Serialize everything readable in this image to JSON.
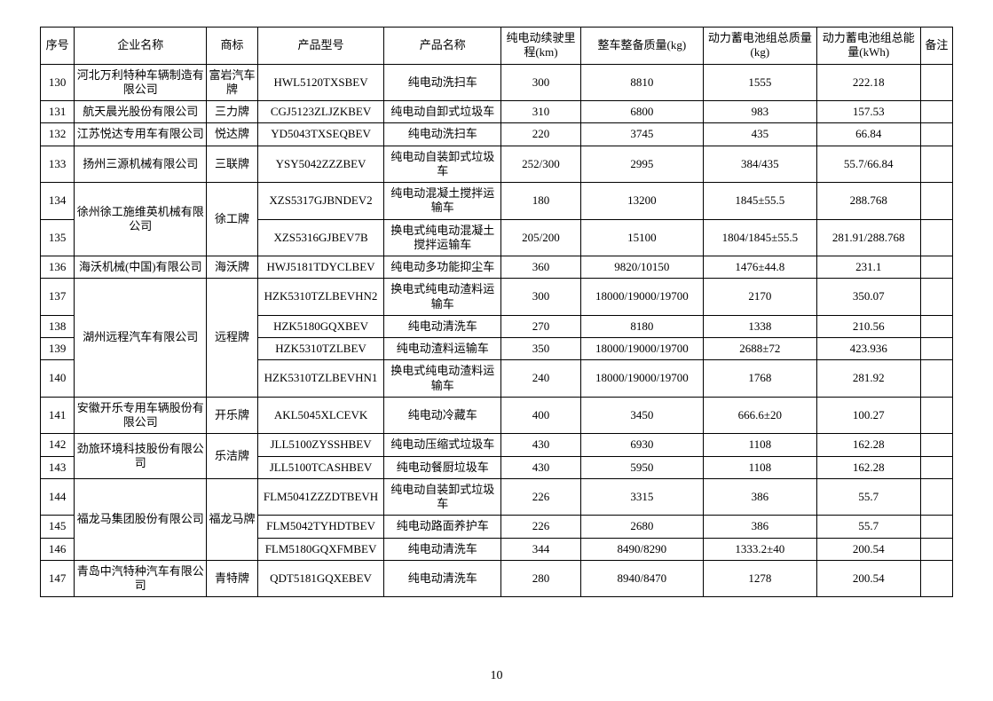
{
  "pageNumber": "10",
  "columns": [
    "序号",
    "企业名称",
    "商标",
    "产品型号",
    "产品名称",
    "纯电动续驶里程(km)",
    "整车整备质量(kg)",
    "动力蓄电池组总质量(kg)",
    "动力蓄电池组总能量(kWh)",
    "备注"
  ],
  "rows": [
    {
      "seq": "130",
      "company": "河北万利特种车辆制造有限公司",
      "brand": "富岩汽车牌",
      "model": "HWL5120TXSBEV",
      "pname": "纯电动洗扫车",
      "range": "300",
      "mass": "8810",
      "bmass": "1555",
      "energy": "222.18",
      "note": "",
      "rowspanCompany": 1,
      "rowspanBrand": 1
    },
    {
      "seq": "131",
      "company": "航天晨光股份有限公司",
      "brand": "三力牌",
      "model": "CGJ5123ZLJZKBEV",
      "pname": "纯电动自卸式垃圾车",
      "range": "310",
      "mass": "6800",
      "bmass": "983",
      "energy": "157.53",
      "note": "",
      "rowspanCompany": 1,
      "rowspanBrand": 1
    },
    {
      "seq": "132",
      "company": "江苏悦达专用车有限公司",
      "brand": "悦达牌",
      "model": "YD5043TXSEQBEV",
      "pname": "纯电动洗扫车",
      "range": "220",
      "mass": "3745",
      "bmass": "435",
      "energy": "66.84",
      "note": "",
      "rowspanCompany": 1,
      "rowspanBrand": 1
    },
    {
      "seq": "133",
      "company": "扬州三源机械有限公司",
      "brand": "三联牌",
      "model": "YSY5042ZZZBEV",
      "pname": "纯电动自装卸式垃圾车",
      "range": "252/300",
      "mass": "2995",
      "bmass": "384/435",
      "energy": "55.7/66.84",
      "note": "",
      "rowspanCompany": 1,
      "rowspanBrand": 1
    },
    {
      "seq": "134",
      "company": "徐州徐工施维英机械有限公司",
      "brand": "徐工牌",
      "model": "XZS5317GJBNDEV2",
      "pname": "纯电动混凝土搅拌运输车",
      "range": "180",
      "mass": "13200",
      "bmass": "1845±55.5",
      "energy": "288.768",
      "note": "",
      "rowspanCompany": 2,
      "rowspanBrand": 2
    },
    {
      "seq": "135",
      "company": null,
      "brand": null,
      "model": "XZS5316GJBEV7B",
      "pname": "换电式纯电动混凝土搅拌运输车",
      "range": "205/200",
      "mass": "15100",
      "bmass": "1804/1845±55.5",
      "energy": "281.91/288.768",
      "note": ""
    },
    {
      "seq": "136",
      "company": "海沃机械(中国)有限公司",
      "brand": "海沃牌",
      "model": "HWJ5181TDYCLBEV",
      "pname": "纯电动多功能抑尘车",
      "range": "360",
      "mass": "9820/10150",
      "bmass": "1476±44.8",
      "energy": "231.1",
      "note": "",
      "rowspanCompany": 1,
      "rowspanBrand": 1
    },
    {
      "seq": "137",
      "company": "湖州远程汽车有限公司",
      "brand": "远程牌",
      "model": "HZK5310TZLBEVHN2",
      "pname": "换电式纯电动渣料运输车",
      "range": "300",
      "mass": "18000/19000/19700",
      "bmass": "2170",
      "energy": "350.07",
      "note": "",
      "rowspanCompany": 4,
      "rowspanBrand": 4
    },
    {
      "seq": "138",
      "company": null,
      "brand": null,
      "model": "HZK5180GQXBEV",
      "pname": "纯电动清洗车",
      "range": "270",
      "mass": "8180",
      "bmass": "1338",
      "energy": "210.56",
      "note": ""
    },
    {
      "seq": "139",
      "company": null,
      "brand": null,
      "model": "HZK5310TZLBEV",
      "pname": "纯电动渣料运输车",
      "range": "350",
      "mass": "18000/19000/19700",
      "bmass": "2688±72",
      "energy": "423.936",
      "note": ""
    },
    {
      "seq": "140",
      "company": null,
      "brand": null,
      "model": "HZK5310TZLBEVHN1",
      "pname": "换电式纯电动渣料运输车",
      "range": "240",
      "mass": "18000/19000/19700",
      "bmass": "1768",
      "energy": "281.92",
      "note": ""
    },
    {
      "seq": "141",
      "company": "安徽开乐专用车辆股份有限公司",
      "brand": "开乐牌",
      "model": "AKL5045XLCEVK",
      "pname": "纯电动冷藏车",
      "range": "400",
      "mass": "3450",
      "bmass": "666.6±20",
      "energy": "100.27",
      "note": "",
      "rowspanCompany": 1,
      "rowspanBrand": 1
    },
    {
      "seq": "142",
      "company": "劲旅环境科技股份有限公司",
      "brand": "乐洁牌",
      "model": "JLL5100ZYSSHBEV",
      "pname": "纯电动压缩式垃圾车",
      "range": "430",
      "mass": "6930",
      "bmass": "1108",
      "energy": "162.28",
      "note": "",
      "rowspanCompany": 2,
      "rowspanBrand": 2
    },
    {
      "seq": "143",
      "company": null,
      "brand": null,
      "model": "JLL5100TCASHBEV",
      "pname": "纯电动餐厨垃圾车",
      "range": "430",
      "mass": "5950",
      "bmass": "1108",
      "energy": "162.28",
      "note": ""
    },
    {
      "seq": "144",
      "company": "福龙马集团股份有限公司",
      "brand": "福龙马牌",
      "model": "FLM5041ZZZDTBEVH",
      "pname": "纯电动自装卸式垃圾车",
      "range": "226",
      "mass": "3315",
      "bmass": "386",
      "energy": "55.7",
      "note": "",
      "rowspanCompany": 3,
      "rowspanBrand": 3
    },
    {
      "seq": "145",
      "company": null,
      "brand": null,
      "model": "FLM5042TYHDTBEV",
      "pname": "纯电动路面养护车",
      "range": "226",
      "mass": "2680",
      "bmass": "386",
      "energy": "55.7",
      "note": ""
    },
    {
      "seq": "146",
      "company": null,
      "brand": null,
      "model": "FLM5180GQXFMBEV",
      "pname": "纯电动清洗车",
      "range": "344",
      "mass": "8490/8290",
      "bmass": "1333.2±40",
      "energy": "200.54",
      "note": ""
    },
    {
      "seq": "147",
      "company": "青岛中汽特种汽车有限公司",
      "brand": "青特牌",
      "model": "QDT5181GQXEBEV",
      "pname": "纯电动清洗车",
      "range": "280",
      "mass": "8940/8470",
      "bmass": "1278",
      "energy": "200.54",
      "note": "",
      "rowspanCompany": 1,
      "rowspanBrand": 1
    }
  ]
}
